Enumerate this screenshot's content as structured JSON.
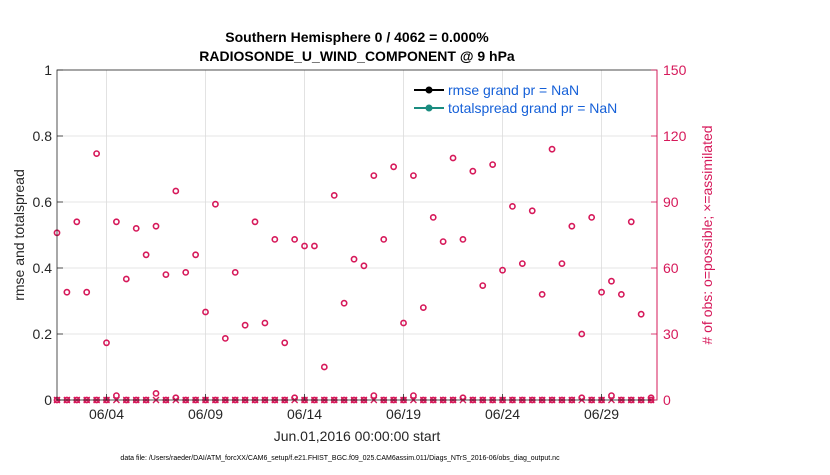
{
  "chart_data": {
    "type": "scatter",
    "title": "Southern Hemisphere 0 / 4062 = 0.000%",
    "subtitle": "RADIOSONDE_U_WIND_COMPONENT @ 9 hPa",
    "xlabel": "Jun.01,2016 00:00:00 start",
    "ylabel": "rmse and totalspread",
    "y2label": "# of obs: o=possible; ×=assimilated",
    "footer": "data file: /Users/raeder/DAI/ATM_forcXX/CAM6_setup/f.e21.FHIST_BGC.f09_025.CAM6assim.011/Diags_NTrS_2016-06/obs_diag_output.nc",
    "xlim": [
      0.5,
      30.8
    ],
    "ylim": [
      0,
      1
    ],
    "y2lim": [
      0,
      150
    ],
    "x_ticks": [
      3,
      8,
      13,
      18,
      23,
      28
    ],
    "x_tick_labels": [
      "06/04",
      "06/09",
      "06/14",
      "06/19",
      "06/24",
      "06/29"
    ],
    "y_ticks": [
      0,
      0.2,
      0.4,
      0.6,
      0.8,
      1
    ],
    "y_tick_labels": [
      "0",
      "0.2",
      "0.4",
      "0.6",
      "0.8",
      "1"
    ],
    "y2_ticks": [
      0,
      30,
      60,
      90,
      120,
      150
    ],
    "y2_tick_labels": [
      "0",
      "30",
      "60",
      "90",
      "120",
      "150"
    ],
    "legend": [
      {
        "label": "rmse grand pr = NaN",
        "color": "#000000"
      },
      {
        "label": "totalspread grand pr = NaN",
        "color": "#1a8c80"
      }
    ],
    "series": [
      {
        "name": "obs possible",
        "axis": "right",
        "marker": "circle",
        "color": "#d6195a",
        "x": [
          0.5,
          1.0,
          1.5,
          2.0,
          2.5,
          3.0,
          3.5,
          4.0,
          4.5,
          5.0,
          5.5,
          6.0,
          6.5,
          7.0,
          7.5,
          8.0,
          8.5,
          9.0,
          9.5,
          10.0,
          10.5,
          11.0,
          11.5,
          12.0,
          12.5,
          13.0,
          13.5,
          14.0,
          14.5,
          15.0,
          15.5,
          16.0,
          16.5,
          17.0,
          17.5,
          18.0,
          18.5,
          19.0,
          19.5,
          20.0,
          20.5,
          21.0,
          21.5,
          22.0,
          22.5,
          23.0,
          23.5,
          24.0,
          24.5,
          25.0,
          25.5,
          26.0,
          26.5,
          27.0,
          27.5,
          28.0,
          28.5,
          29.0,
          29.5,
          30.0,
          30.5
        ],
        "y": [
          76,
          49,
          81,
          49,
          112,
          26,
          81,
          55,
          78,
          66,
          79,
          57,
          95,
          58,
          66,
          40,
          89,
          28,
          58,
          34,
          81,
          35,
          73,
          26,
          73,
          70,
          70,
          15,
          93,
          44,
          64,
          61,
          102,
          73,
          106,
          35,
          102,
          42,
          83,
          72,
          110,
          73,
          104,
          52,
          107,
          59,
          88,
          62,
          86,
          48,
          114,
          62,
          79,
          30,
          83,
          49,
          54,
          48,
          81,
          39,
          0
        ]
      },
      {
        "name": "obs possible (near zero)",
        "axis": "right",
        "marker": "circle",
        "color": "#d6195a",
        "x": [
          0.5,
          1.0,
          1.5,
          2.0,
          2.5,
          3.0,
          3.5,
          4.0,
          4.5,
          5.0,
          5.5,
          6.0,
          6.5,
          7.0,
          7.5,
          8.0,
          8.5,
          9.0,
          9.5,
          10.0,
          10.5,
          11.0,
          11.5,
          12.0,
          12.5,
          13.0,
          13.5,
          14.0,
          14.5,
          15.0,
          15.5,
          16.0,
          16.5,
          17.0,
          17.5,
          18.0,
          18.5,
          19.0,
          19.5,
          20.0,
          20.5,
          21.0,
          21.5,
          22.0,
          22.5,
          23.0,
          23.5,
          24.0,
          24.5,
          25.0,
          25.5,
          26.0,
          26.5,
          27.0,
          27.5,
          28.0,
          28.5,
          29.0,
          29.5,
          30.0,
          30.5
        ],
        "y": [
          0,
          0,
          0,
          0,
          0,
          0,
          2,
          0,
          0,
          0,
          3,
          0,
          1,
          0,
          0,
          0,
          0,
          0,
          0,
          0,
          0,
          0,
          0,
          0,
          1,
          0,
          0,
          0,
          0,
          0,
          0,
          0,
          2,
          0,
          0,
          0,
          2,
          0,
          0,
          0,
          0,
          1,
          0,
          0,
          0,
          0,
          0,
          0,
          0,
          0,
          0,
          0,
          0,
          1,
          0,
          0,
          2,
          0,
          0,
          0,
          1
        ]
      },
      {
        "name": "obs assimilated",
        "axis": "right",
        "marker": "x",
        "color": "#d6195a",
        "x": [
          0.5,
          1.0,
          1.5,
          2.0,
          2.5,
          3.0,
          3.5,
          4.0,
          4.5,
          5.0,
          5.5,
          6.0,
          6.5,
          7.0,
          7.5,
          8.0,
          8.5,
          9.0,
          9.5,
          10.0,
          10.5,
          11.0,
          11.5,
          12.0,
          12.5,
          13.0,
          13.5,
          14.0,
          14.5,
          15.0,
          15.5,
          16.0,
          16.5,
          17.0,
          17.5,
          18.0,
          18.5,
          19.0,
          19.5,
          20.0,
          20.5,
          21.0,
          21.5,
          22.0,
          22.5,
          23.0,
          23.5,
          24.0,
          24.5,
          25.0,
          25.5,
          26.0,
          26.5,
          27.0,
          27.5,
          28.0,
          28.5,
          29.0,
          29.5,
          30.0,
          30.5
        ],
        "y": [
          0,
          0,
          0,
          0,
          0,
          0,
          0,
          0,
          0,
          0,
          0,
          0,
          0,
          0,
          0,
          0,
          0,
          0,
          0,
          0,
          0,
          0,
          0,
          0,
          0,
          0,
          0,
          0,
          0,
          0,
          0,
          0,
          0,
          0,
          0,
          0,
          0,
          0,
          0,
          0,
          0,
          0,
          0,
          0,
          0,
          0,
          0,
          0,
          0,
          0,
          0,
          0,
          0,
          0,
          0,
          0,
          0,
          0,
          0,
          0,
          0
        ]
      }
    ]
  }
}
